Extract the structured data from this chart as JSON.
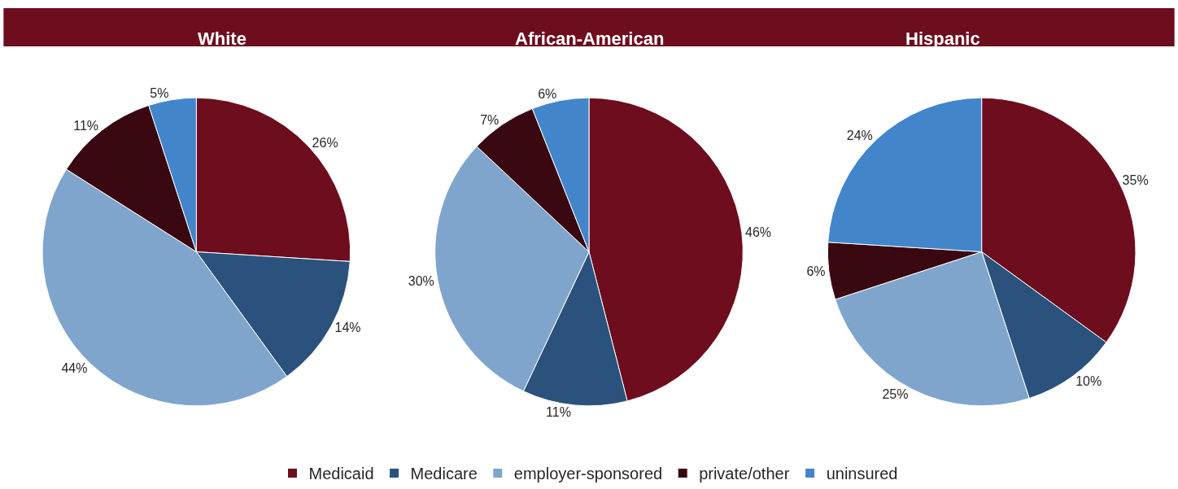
{
  "chart_data": [
    {
      "type": "pie",
      "title": "White",
      "categories": [
        "Medicaid",
        "Medicare",
        "employer-sponsored",
        "private/other",
        "uninsured"
      ],
      "values": [
        26,
        14,
        44,
        11,
        5
      ],
      "value_labels": [
        "26%",
        "14%",
        "44%",
        "11%",
        "5%"
      ],
      "colors": [
        "#6d0d1e",
        "#2a527c",
        "#7fa5cc",
        "#3a0811",
        "#4285cb"
      ],
      "legend": "bottom"
    },
    {
      "type": "pie",
      "title": "African-American",
      "categories": [
        null,
        null,
        null,
        null,
        null
      ],
      "values": [
        46,
        11,
        30,
        7,
        6
      ],
      "value_labels": [
        "46%",
        "11%",
        "30%",
        "7%",
        "6%"
      ],
      "colors": [
        "#6d0d1e",
        "#2a527c",
        "#7fa5cc",
        "#3a0811",
        "#4285cb"
      ]
    },
    {
      "type": "pie",
      "title": "Hispanic",
      "categories": [
        null,
        null,
        null,
        null,
        null
      ],
      "values": [
        35,
        10,
        25,
        6,
        24
      ],
      "value_labels": [
        "35%",
        "10%",
        "25%",
        "6%",
        "24%"
      ],
      "colors": [
        "#6d0d1e",
        "#2a527c",
        "#7fa5cc",
        "#3a0811",
        "#4285cb"
      ]
    }
  ]
}
